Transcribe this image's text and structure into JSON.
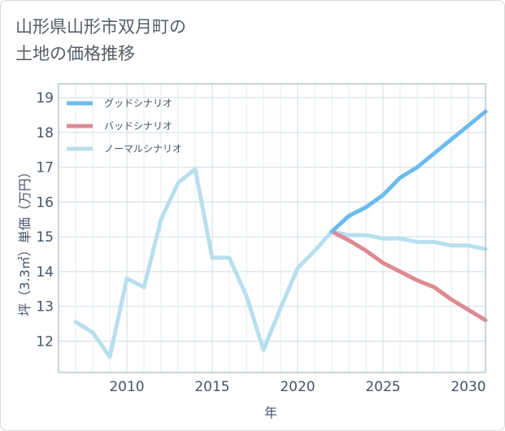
{
  "title": "山形県山形市双月町の\n土地の価格推移",
  "chart_data": {
    "type": "line",
    "xlabel": "年",
    "ylabel": "坪（3.3㎡）単価（万円）",
    "xlim": [
      2006,
      2031
    ],
    "ylim": [
      11.1,
      19.4
    ],
    "xticks": [
      2010,
      2015,
      2020,
      2025,
      2030
    ],
    "yticks": [
      12,
      13,
      14,
      15,
      16,
      17,
      18,
      19
    ],
    "grid": true,
    "legend_position": "top-left",
    "series": [
      {
        "name": "グッドシナリオ",
        "color": "#6bbcee",
        "x": [
          2022,
          2023,
          2024,
          2025,
          2026,
          2027,
          2028,
          2029,
          2030,
          2031
        ],
        "values": [
          15.15,
          15.6,
          15.85,
          16.2,
          16.7,
          17.0,
          17.4,
          17.8,
          18.2,
          18.6
        ]
      },
      {
        "name": "バッドシナリオ",
        "color": "#dd8a92",
        "x": [
          2022,
          2023,
          2024,
          2025,
          2026,
          2027,
          2028,
          2029,
          2030,
          2031
        ],
        "values": [
          15.15,
          14.9,
          14.6,
          14.25,
          14.0,
          13.75,
          13.55,
          13.2,
          12.9,
          12.6
        ]
      },
      {
        "name": "ノーマルシナリオ",
        "color": "#b8dfee",
        "x": [
          2007,
          2008,
          2009,
          2010,
          2011,
          2012,
          2013,
          2014,
          2015,
          2016,
          2017,
          2018,
          2019,
          2020,
          2021,
          2022,
          2023,
          2024,
          2025,
          2026,
          2027,
          2028,
          2029,
          2030,
          2031
        ],
        "values": [
          12.55,
          12.25,
          11.55,
          13.8,
          13.55,
          15.5,
          16.55,
          16.95,
          14.4,
          14.4,
          13.3,
          11.75,
          12.95,
          14.1,
          14.6,
          15.15,
          15.05,
          15.05,
          14.95,
          14.95,
          14.85,
          14.85,
          14.75,
          14.75,
          14.65
        ]
      }
    ]
  }
}
